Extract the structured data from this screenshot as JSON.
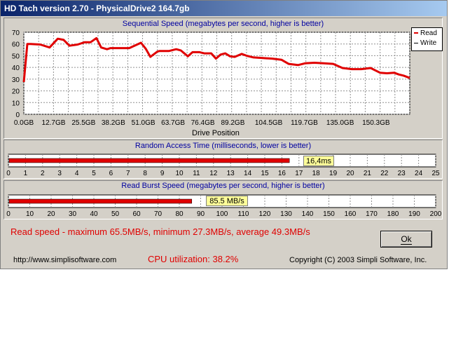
{
  "window": {
    "title": "HD Tach version 2.70 - PhysicalDrive2 164.7gb"
  },
  "sequential": {
    "title": "Sequential Speed (megabytes per second, higher is better)",
    "xlabel": "Drive Position",
    "legend": {
      "read": "Read",
      "write": "Write",
      "read_color": "#e00000",
      "write_color": "#000000"
    }
  },
  "random": {
    "title": "Random Access Time (milliseconds, lower is better)",
    "value_label": "16,4ms",
    "value": 16.4,
    "ticks": [
      "0",
      "1",
      "2",
      "3",
      "4",
      "5",
      "6",
      "7",
      "8",
      "9",
      "10",
      "11",
      "12",
      "13",
      "14",
      "15",
      "16",
      "17",
      "18",
      "19",
      "20",
      "21",
      "22",
      "23",
      "24",
      "25"
    ]
  },
  "burst": {
    "title": "Read Burst Speed (megabytes per second, higher is better)",
    "value_label": "85.5 MB/s",
    "value": 85.5,
    "ticks": [
      "0",
      "10",
      "20",
      "30",
      "40",
      "50",
      "60",
      "70",
      "80",
      "90",
      "100",
      "110",
      "120",
      "130",
      "140",
      "150",
      "160",
      "170",
      "180",
      "190",
      "200"
    ]
  },
  "stats": {
    "text": "Read speed - maximum 65.5MB/s, minimum 27.3MB/s, average 49.3MB/s"
  },
  "footer": {
    "url": "http://www.simplisoftware.com",
    "cpu": "CPU utilization: 38.2%",
    "copyright": "Copyright (C) 2003 Simpli Software, Inc."
  },
  "ok_button": {
    "label": "Ok"
  },
  "colors": {
    "bar": "#e00000",
    "title_text": "#0000a0",
    "accent": "#0a246a"
  },
  "chart_data": {
    "type": "line",
    "title": "Sequential Speed (megabytes per second, higher is better)",
    "xlabel": "Drive Position",
    "ylabel": "",
    "ylim": [
      0,
      70
    ],
    "yticks": [
      "0",
      "10",
      "20",
      "30",
      "40",
      "50",
      "60",
      "70"
    ],
    "xtick_labels": [
      "0.0GB",
      "12.7GB",
      "25.5GB",
      "38.2GB",
      "51.0GB",
      "63.7GB",
      "76.4GB",
      "89.2GB",
      "104.5GB",
      "119.7GB",
      "135.0GB",
      "150.3GB"
    ],
    "xtick_gb": [
      0,
      12.7,
      25.5,
      38.2,
      51.0,
      63.7,
      76.4,
      89.2,
      104.5,
      119.7,
      135.0,
      150.3
    ],
    "xlim": [
      0,
      164.7
    ],
    "grid": true,
    "legend_position": "top-right",
    "series": [
      {
        "name": "Read",
        "x": [
          0,
          1.5,
          3,
          7,
          11,
          14.5,
          17,
          19.5,
          23,
          26,
          28.5,
          31,
          33,
          35.5,
          37,
          40,
          45,
          50,
          52,
          54,
          57,
          58,
          60,
          62,
          65,
          67,
          70,
          72,
          75,
          77,
          80,
          82,
          84,
          86,
          88,
          90,
          93,
          95,
          98,
          102,
          106,
          110,
          113,
          117,
          120,
          124,
          128,
          132,
          136,
          140,
          144,
          148,
          152,
          155,
          158,
          160,
          162,
          164.7
        ],
        "y": [
          27.5,
          60,
          60,
          59.5,
          57,
          64.5,
          63.5,
          58.5,
          59.5,
          61.5,
          61.5,
          65,
          57,
          55.5,
          56.5,
          56.5,
          56.5,
          61,
          56,
          49,
          53.5,
          54,
          54,
          54,
          55.5,
          54.5,
          49.5,
          53,
          53,
          52,
          52,
          47.5,
          51,
          52,
          49.5,
          49,
          51.5,
          50,
          48.5,
          48,
          47.5,
          46.5,
          43,
          42,
          43.5,
          44,
          43.5,
          43,
          39.5,
          38.5,
          38.5,
          39.5,
          35.5,
          35,
          35.5,
          34,
          33,
          31
        ]
      },
      {
        "name": "Write",
        "x": [],
        "y": []
      }
    ]
  }
}
